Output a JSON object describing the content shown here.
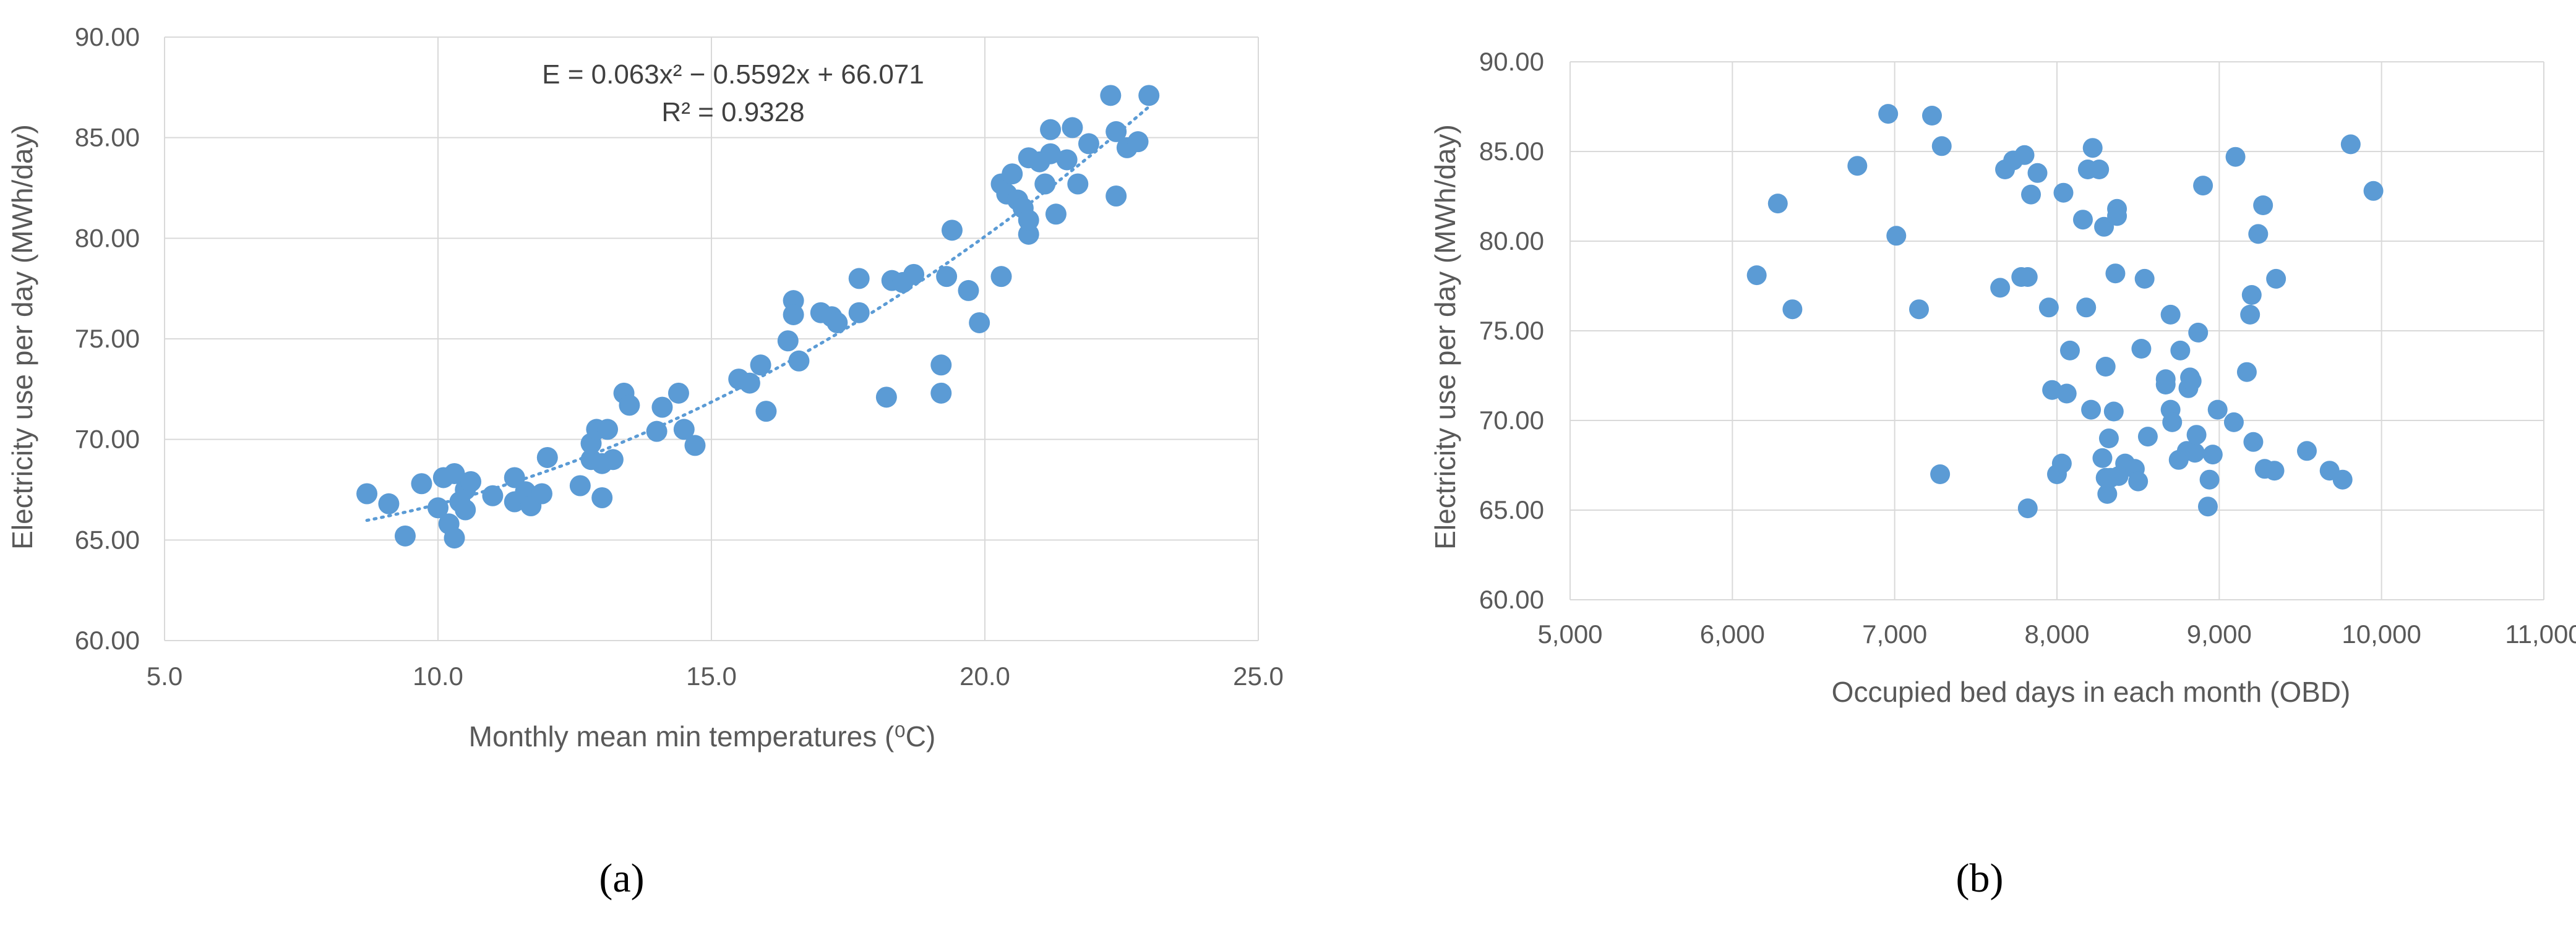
{
  "colors": {
    "marker": "#5B9BD5",
    "trendline": "#5B9BD5",
    "grid": "#d9d9d9",
    "text": "#595959"
  },
  "chart_data": [
    {
      "type": "scatter",
      "panel_label": "(a)",
      "title": "",
      "xlabel": "Monthly mean min temperatures (⁰C)",
      "ylabel": "Electricity use per day (MWh/day)",
      "xlim": [
        5.0,
        25.0
      ],
      "ylim": [
        60.0,
        90.0
      ],
      "x_ticks": [
        "5.0",
        "10.0",
        "15.0",
        "20.0",
        "25.0"
      ],
      "y_ticks": [
        "60.00",
        "65.00",
        "70.00",
        "75.00",
        "80.00",
        "85.00",
        "90.00"
      ],
      "grid": true,
      "legend": "none",
      "trendline": {
        "type": "polynomial",
        "coefficients": [
          0.063,
          -0.5592,
          66.071
        ],
        "x_range": [
          8.7,
          23.0
        ],
        "equation_label": "E = 0.063x² − 0.5592x + 66.071",
        "r2_label": "R² = 0.9328"
      },
      "points": [
        [
          8.7,
          67.3
        ],
        [
          9.1,
          66.8
        ],
        [
          9.4,
          65.2
        ],
        [
          9.7,
          67.8
        ],
        [
          10.0,
          66.6
        ],
        [
          10.1,
          68.1
        ],
        [
          10.2,
          65.8
        ],
        [
          10.3,
          68.3
        ],
        [
          10.3,
          65.1
        ],
        [
          10.4,
          66.9
        ],
        [
          10.5,
          66.5
        ],
        [
          10.5,
          67.5
        ],
        [
          10.6,
          67.9
        ],
        [
          11.0,
          67.2
        ],
        [
          11.4,
          66.9
        ],
        [
          11.4,
          68.1
        ],
        [
          11.6,
          67.4
        ],
        [
          11.7,
          66.7
        ],
        [
          11.9,
          67.3
        ],
        [
          12.0,
          69.1
        ],
        [
          12.6,
          67.7
        ],
        [
          12.8,
          69.0
        ],
        [
          12.8,
          69.8
        ],
        [
          12.9,
          70.5
        ],
        [
          13.0,
          67.1
        ],
        [
          13.0,
          68.8
        ],
        [
          13.1,
          70.5
        ],
        [
          13.2,
          69.0
        ],
        [
          13.4,
          72.3
        ],
        [
          13.5,
          71.7
        ],
        [
          14.0,
          70.4
        ],
        [
          14.1,
          71.6
        ],
        [
          14.4,
          72.3
        ],
        [
          14.5,
          70.5
        ],
        [
          14.7,
          69.7
        ],
        [
          15.5,
          73.0
        ],
        [
          15.7,
          72.8
        ],
        [
          15.9,
          73.7
        ],
        [
          16.0,
          71.4
        ],
        [
          16.4,
          74.9
        ],
        [
          16.5,
          76.9
        ],
        [
          16.5,
          76.2
        ],
        [
          16.6,
          73.9
        ],
        [
          17.0,
          76.3
        ],
        [
          17.2,
          76.1
        ],
        [
          17.3,
          75.8
        ],
        [
          17.7,
          78.0
        ],
        [
          17.7,
          76.3
        ],
        [
          18.2,
          72.1
        ],
        [
          18.3,
          77.9
        ],
        [
          18.5,
          77.8
        ],
        [
          18.7,
          78.2
        ],
        [
          19.2,
          73.7
        ],
        [
          19.2,
          72.3
        ],
        [
          19.3,
          78.1
        ],
        [
          19.4,
          80.4
        ],
        [
          19.7,
          77.4
        ],
        [
          19.9,
          75.8
        ],
        [
          20.3,
          78.1
        ],
        [
          20.3,
          82.7
        ],
        [
          20.4,
          82.2
        ],
        [
          20.5,
          83.2
        ],
        [
          20.6,
          81.9
        ],
        [
          20.7,
          81.5
        ],
        [
          20.8,
          80.2
        ],
        [
          20.8,
          80.9
        ],
        [
          20.8,
          84.0
        ],
        [
          21.0,
          83.8
        ],
        [
          21.1,
          82.7
        ],
        [
          21.2,
          84.2
        ],
        [
          21.2,
          85.4
        ],
        [
          21.3,
          81.2
        ],
        [
          21.5,
          83.9
        ],
        [
          21.6,
          85.5
        ],
        [
          21.7,
          82.7
        ],
        [
          21.9,
          84.7
        ],
        [
          22.3,
          87.1
        ],
        [
          22.4,
          82.1
        ],
        [
          22.4,
          85.3
        ],
        [
          22.6,
          84.5
        ],
        [
          22.8,
          84.8
        ],
        [
          23.0,
          87.1
        ]
      ]
    },
    {
      "type": "scatter",
      "panel_label": "(b)",
      "title": "",
      "xlabel": "Occupied bed days in each month (OBD)",
      "ylabel": "Electricity use per day (MWh/day)",
      "xlim": [
        5000,
        11000
      ],
      "ylim": [
        60.0,
        90.0
      ],
      "x_ticks": [
        "5,000",
        "6,000",
        "7,000",
        "8,000",
        "9,000",
        "10,000",
        "11,000"
      ],
      "y_ticks": [
        "60.00",
        "65.00",
        "70.00",
        "75.00",
        "80.00",
        "85.00",
        "90.00"
      ],
      "grid": true,
      "legend": "none",
      "points": [
        [
          6150,
          78.1
        ],
        [
          6280,
          82.1
        ],
        [
          6370,
          76.2
        ],
        [
          6770,
          84.2
        ],
        [
          6960,
          87.1
        ],
        [
          7010,
          80.3
        ],
        [
          7150,
          76.2
        ],
        [
          7230,
          87.0
        ],
        [
          7280,
          67.0
        ],
        [
          7290,
          85.3
        ],
        [
          7650,
          77.4
        ],
        [
          7680,
          84.0
        ],
        [
          7730,
          84.5
        ],
        [
          7780,
          78.0
        ],
        [
          7800,
          84.8
        ],
        [
          7820,
          78.0
        ],
        [
          7820,
          65.1
        ],
        [
          7840,
          82.6
        ],
        [
          7880,
          83.8
        ],
        [
          7950,
          76.3
        ],
        [
          7970,
          71.7
        ],
        [
          8000,
          67.0
        ],
        [
          8030,
          67.6
        ],
        [
          8040,
          82.7
        ],
        [
          8060,
          71.5
        ],
        [
          8080,
          73.9
        ],
        [
          8160,
          81.2
        ],
        [
          8180,
          76.3
        ],
        [
          8190,
          84.0
        ],
        [
          8210,
          70.6
        ],
        [
          8220,
          85.2
        ],
        [
          8260,
          84.0
        ],
        [
          8280,
          67.9
        ],
        [
          8290,
          80.8
        ],
        [
          8300,
          73.0
        ],
        [
          8300,
          66.8
        ],
        [
          8310,
          65.9
        ],
        [
          8320,
          69.0
        ],
        [
          8330,
          66.8
        ],
        [
          8350,
          70.5
        ],
        [
          8360,
          78.2
        ],
        [
          8370,
          81.8
        ],
        [
          8370,
          81.4
        ],
        [
          8380,
          66.9
        ],
        [
          8420,
          67.6
        ],
        [
          8480,
          67.3
        ],
        [
          8500,
          66.6
        ],
        [
          8520,
          74.0
        ],
        [
          8540,
          77.9
        ],
        [
          8560,
          69.1
        ],
        [
          8670,
          72.3
        ],
        [
          8670,
          72.0
        ],
        [
          8700,
          75.9
        ],
        [
          8700,
          70.6
        ],
        [
          8710,
          69.9
        ],
        [
          8750,
          67.8
        ],
        [
          8760,
          73.9
        ],
        [
          8800,
          68.3
        ],
        [
          8810,
          71.8
        ],
        [
          8820,
          72.4
        ],
        [
          8830,
          72.2
        ],
        [
          8850,
          68.2
        ],
        [
          8860,
          69.2
        ],
        [
          8870,
          74.9
        ],
        [
          8900,
          83.1
        ],
        [
          8930,
          65.2
        ],
        [
          8940,
          66.7
        ],
        [
          8960,
          68.1
        ],
        [
          8990,
          70.6
        ],
        [
          9090,
          69.9
        ],
        [
          9100,
          84.7
        ],
        [
          9170,
          72.7
        ],
        [
          9190,
          75.9
        ],
        [
          9200,
          77.0
        ],
        [
          9210,
          68.8
        ],
        [
          9240,
          80.4
        ],
        [
          9270,
          82.0
        ],
        [
          9280,
          67.3
        ],
        [
          9340,
          67.2
        ],
        [
          9350,
          77.9
        ],
        [
          9540,
          68.3
        ],
        [
          9680,
          67.2
        ],
        [
          9760,
          66.7
        ],
        [
          9810,
          85.4
        ],
        [
          9950,
          82.8
        ]
      ]
    }
  ]
}
